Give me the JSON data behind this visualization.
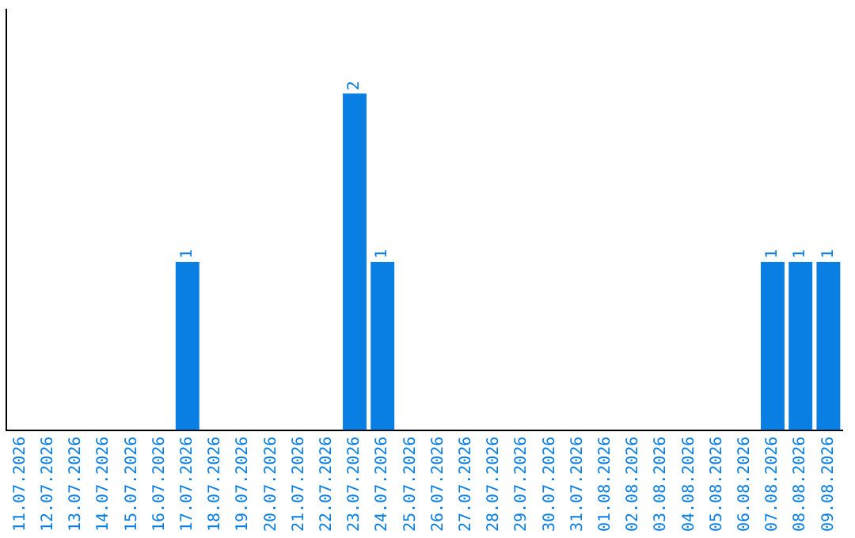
{
  "chart_data": {
    "type": "bar",
    "categories": [
      "11.07.2026",
      "12.07.2026",
      "13.07.2026",
      "14.07.2026",
      "15.07.2026",
      "16.07.2026",
      "17.07.2026",
      "18.07.2026",
      "19.07.2026",
      "20.07.2026",
      "21.07.2026",
      "22.07.2026",
      "23.07.2026",
      "24.07.2026",
      "25.07.2026",
      "26.07.2026",
      "27.07.2026",
      "28.07.2026",
      "29.07.2026",
      "30.07.2026",
      "31.07.2026",
      "01.08.2026",
      "02.08.2026",
      "03.08.2026",
      "04.08.2026",
      "05.08.2026",
      "06.08.2026",
      "07.08.2026",
      "08.08.2026",
      "09.08.2026"
    ],
    "values": [
      0,
      0,
      0,
      0,
      0,
      0,
      1,
      0,
      0,
      0,
      0,
      0,
      2,
      1,
      0,
      0,
      0,
      0,
      0,
      0,
      0,
      0,
      0,
      0,
      0,
      0,
      0,
      1,
      1,
      1
    ],
    "value_labels": [
      null,
      null,
      null,
      null,
      null,
      null,
      "1",
      null,
      null,
      null,
      null,
      null,
      "2",
      "1",
      null,
      null,
      null,
      null,
      null,
      null,
      null,
      null,
      null,
      null,
      null,
      null,
      null,
      "1",
      "1",
      "1"
    ],
    "color": "#0a7fe3",
    "grid": false,
    "legend": false,
    "tick_labels": "x"
  }
}
